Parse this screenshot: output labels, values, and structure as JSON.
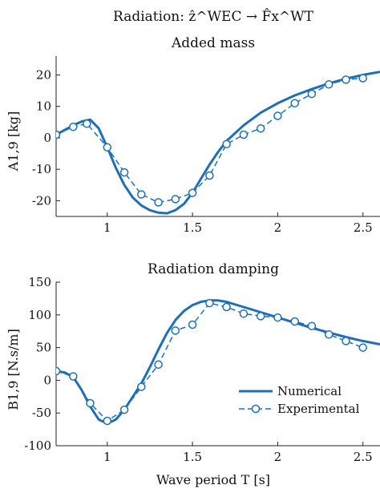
{
  "figure": {
    "title": "Radiation: ẑ^WEC → F̂x^WT",
    "xlabel": "Wave period T [s]"
  },
  "colors": {
    "series": "#1f6fb8",
    "axis": "#222222"
  },
  "chart_data": [
    {
      "type": "line",
      "title": "Added mass",
      "xlabel": "",
      "ylabel": "A1,9 [kg]",
      "xlim": [
        0.7,
        2.6
      ],
      "ylim": [
        -25,
        26
      ],
      "xticks": [
        1,
        1.5,
        2,
        2.5
      ],
      "yticks": [
        -20,
        -10,
        0,
        10,
        20
      ],
      "xtick_labels": [
        "1",
        "1.5",
        "2",
        "2.5"
      ],
      "ytick_labels": [
        "-20",
        "-10",
        "0",
        "10",
        "20"
      ],
      "grid": false,
      "series": [
        {
          "name": "Numerical",
          "style": "solid",
          "x": [
            0.7,
            0.75,
            0.8,
            0.85,
            0.9,
            0.95,
            1.0,
            1.05,
            1.1,
            1.15,
            1.2,
            1.25,
            1.3,
            1.35,
            1.4,
            1.45,
            1.5,
            1.55,
            1.6,
            1.65,
            1.7,
            1.8,
            1.9,
            2.0,
            2.1,
            2.2,
            2.3,
            2.4,
            2.5,
            2.6
          ],
          "y": [
            1.0,
            2.5,
            4.0,
            5.2,
            5.8,
            3.0,
            -3.0,
            -9.5,
            -15.0,
            -19.0,
            -21.5,
            -23.0,
            -23.8,
            -24.0,
            -23.0,
            -21.0,
            -17.5,
            -13.0,
            -8.5,
            -4.5,
            -1.0,
            4.0,
            8.0,
            11.0,
            13.5,
            15.5,
            17.3,
            18.8,
            20.0,
            21.0
          ]
        },
        {
          "name": "Experimental",
          "style": "dashed-circle",
          "x": [
            0.7,
            0.8,
            0.88,
            1.0,
            1.1,
            1.2,
            1.3,
            1.4,
            1.5,
            1.6,
            1.7,
            1.8,
            1.9,
            2.0,
            2.1,
            2.2,
            2.3,
            2.4,
            2.5
          ],
          "y": [
            1.0,
            3.5,
            4.5,
            -3.0,
            -11.0,
            -18.0,
            -20.5,
            -19.5,
            -17.5,
            -12.0,
            -2.0,
            1.0,
            3.0,
            7.0,
            11.0,
            14.0,
            17.0,
            18.5,
            19.0
          ]
        }
      ]
    },
    {
      "type": "line",
      "title": "Radiation damping",
      "xlabel": "Wave period T [s]",
      "ylabel": "B1,9 [N.s/m]",
      "xlim": [
        0.7,
        2.6
      ],
      "ylim": [
        -100,
        150
      ],
      "xticks": [
        1,
        1.5,
        2,
        2.5
      ],
      "yticks": [
        -100,
        -50,
        0,
        50,
        100,
        150
      ],
      "xtick_labels": [
        "1",
        "1.5",
        "2",
        "2.5"
      ],
      "ytick_labels": [
        "-100",
        "-50",
        "0",
        "50",
        "100",
        "150"
      ],
      "grid": false,
      "legend": "bottom-right",
      "series": [
        {
          "name": "Numerical",
          "style": "solid",
          "x": [
            0.7,
            0.75,
            0.8,
            0.85,
            0.9,
            0.95,
            1.0,
            1.05,
            1.1,
            1.15,
            1.2,
            1.25,
            1.3,
            1.35,
            1.4,
            1.45,
            1.5,
            1.55,
            1.6,
            1.65,
            1.7,
            1.8,
            1.9,
            2.0,
            2.1,
            2.2,
            2.3,
            2.4,
            2.5,
            2.6
          ],
          "y": [
            14,
            12,
            5,
            -15,
            -40,
            -60,
            -66,
            -60,
            -45,
            -25,
            -5,
            20,
            47,
            72,
            92,
            106,
            115,
            120,
            122,
            122,
            120,
            112,
            104,
            96,
            88,
            80,
            73,
            66,
            60,
            55
          ]
        },
        {
          "name": "Experimental",
          "style": "dashed-circle",
          "x": [
            0.7,
            0.8,
            0.9,
            1.0,
            1.1,
            1.2,
            1.3,
            1.4,
            1.5,
            1.6,
            1.7,
            1.8,
            1.9,
            2.0,
            2.1,
            2.2,
            2.3,
            2.4,
            2.5
          ],
          "y": [
            14,
            6,
            -35,
            -62,
            -45,
            -10,
            24,
            76,
            85,
            118,
            112,
            102,
            98,
            96,
            90,
            83,
            70,
            60,
            50
          ]
        }
      ]
    }
  ]
}
